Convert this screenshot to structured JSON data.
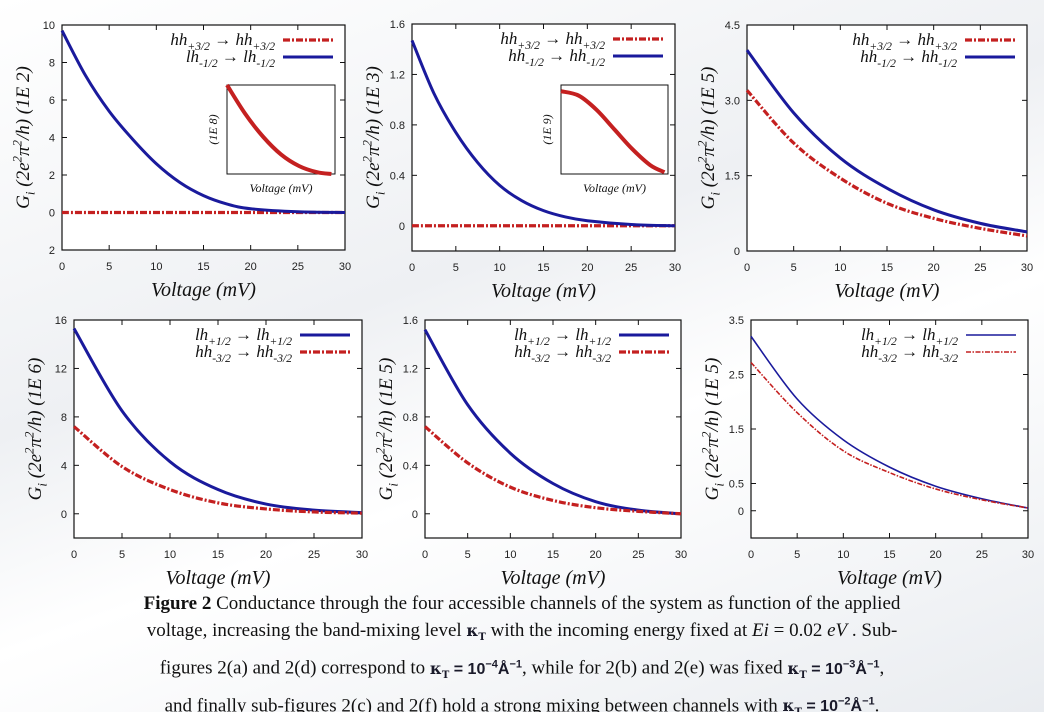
{
  "figure": {
    "colors": {
      "red": "#c42020",
      "blue": "#1a1a9c",
      "axis": "#111111"
    },
    "panels": [
      {
        "id": "a",
        "ylabel": "G_{i} (2e^{2}π^{2}/h) (1E  2)",
        "xlabel": "Voltage (mV)",
        "xlim": [
          0,
          30
        ],
        "ylim": [
          -2,
          10
        ],
        "xticks": [
          "0",
          "5",
          "10",
          "15",
          "20",
          "25",
          "30"
        ],
        "yticks": [
          {
            "v": 10,
            "t": "10"
          },
          {
            "v": 8,
            "t": "8"
          },
          {
            "v": 6,
            "t": "6"
          },
          {
            "v": 4,
            "t": "4"
          },
          {
            "v": 2,
            "t": "2"
          },
          {
            "v": 0,
            "t": "0"
          },
          {
            "v": -2,
            "t": "2"
          }
        ],
        "legend_placement": "top-right",
        "series": [
          {
            "name": "hh_{+3/2} → hh_{+3/2}",
            "color": "red",
            "style": "dashdot",
            "x": [
              0,
              5,
              10,
              15,
              20,
              25,
              30
            ],
            "y": [
              0,
              0,
              0,
              0,
              0,
              0,
              0
            ]
          },
          {
            "name": "lh_{-1/2} → lh_{-1/2}",
            "color": "blue",
            "style": "solid",
            "x": [
              0,
              2.5,
              5,
              7.5,
              10,
              12.5,
              15,
              17.5,
              20,
              25,
              30
            ],
            "y": [
              9.7,
              7.3,
              5.4,
              3.9,
              2.6,
              1.6,
              0.9,
              0.45,
              0.2,
              0.04,
              0
            ]
          }
        ],
        "inset": {
          "ylabel": "(1E  8)",
          "xlabel": "Voltage (mV)",
          "xlim": [
            0,
            30
          ],
          "ylim": [
            0,
            1
          ],
          "series": {
            "color": "red",
            "x": [
              0,
              5,
              10,
              15,
              20,
              25,
              29
            ],
            "y": [
              1,
              0.68,
              0.42,
              0.22,
              0.09,
              0.02,
              0.0
            ]
          }
        }
      },
      {
        "id": "b",
        "ylabel": "G_{i} (2e^{2}π^{2}/h) (1E  3)",
        "xlabel": "Voltage (mV)",
        "xlim": [
          0,
          30
        ],
        "ylim": [
          -0.2,
          1.6
        ],
        "xticks": [
          "0",
          "5",
          "10",
          "15",
          "20",
          "25",
          "30"
        ],
        "yticks": [
          {
            "v": 1.6,
            "t": "1.6"
          },
          {
            "v": 1.2,
            "t": "1.2"
          },
          {
            "v": 0.8,
            "t": "0.8"
          },
          {
            "v": 0.4,
            "t": "0.4"
          },
          {
            "v": 0,
            "t": "0"
          }
        ],
        "legend_placement": "top-right",
        "series": [
          {
            "name": "hh_{+3/2} → hh_{+3/2}",
            "color": "red",
            "style": "dashdot",
            "x": [
              0,
              5,
              10,
              15,
              20,
              25,
              30
            ],
            "y": [
              0,
              0,
              0,
              0,
              0,
              0,
              0
            ]
          },
          {
            "name": "hh_{-1/2} → hh_{-1/2}",
            "color": "blue",
            "style": "solid",
            "x": [
              0,
              2.5,
              5,
              7.5,
              10,
              12.5,
              15,
              17.5,
              20,
              25,
              30
            ],
            "y": [
              1.47,
              1.05,
              0.74,
              0.5,
              0.32,
              0.2,
              0.12,
              0.07,
              0.04,
              0.01,
              0
            ]
          }
        ],
        "inset": {
          "ylabel": "(1E  9)",
          "xlabel": "Voltage (mV)",
          "xlim": [
            0,
            30
          ],
          "ylim": [
            0,
            1
          ],
          "series": {
            "color": "red",
            "x": [
              0,
              5,
              10,
              15,
              20,
              25,
              29
            ],
            "y": [
              0.93,
              0.88,
              0.72,
              0.5,
              0.28,
              0.1,
              0.02
            ]
          }
        }
      },
      {
        "id": "c",
        "ylabel": "G_{i} (2e^{2}π^{2}/h) (1E  5)",
        "xlabel": "Voltage (mV)",
        "xlim": [
          0,
          30
        ],
        "ylim": [
          0,
          4.5
        ],
        "xticks": [
          "0",
          "5",
          "10",
          "15",
          "20",
          "25",
          "30"
        ],
        "yticks": [
          {
            "v": 4.5,
            "t": "4.5"
          },
          {
            "v": 3.0,
            "t": "3.0"
          },
          {
            "v": 1.5,
            "t": "1.5"
          },
          {
            "v": 0,
            "t": "0"
          }
        ],
        "legend_placement": "top-right",
        "series": [
          {
            "name": "hh_{+3/2} → hh_{+3/2}",
            "color": "red",
            "style": "dashdot",
            "x": [
              0,
              5,
              10,
              15,
              20,
              25,
              30
            ],
            "y": [
              3.2,
              2.15,
              1.45,
              0.95,
              0.65,
              0.45,
              0.3
            ]
          },
          {
            "name": "hh_{-1/2} → hh_{-1/2}",
            "color": "blue",
            "style": "solid",
            "x": [
              0,
              5,
              10,
              15,
              20,
              25,
              30
            ],
            "y": [
              4.0,
              2.75,
              1.85,
              1.25,
              0.82,
              0.55,
              0.38
            ]
          }
        ]
      },
      {
        "id": "d",
        "ylabel": "G_{i} (2e^{2}π^{2}/h) (1E  6)",
        "xlabel": "Voltage (mV)",
        "xlim": [
          0,
          30
        ],
        "ylim": [
          -2,
          16
        ],
        "xticks": [
          "0",
          "5",
          "10",
          "15",
          "20",
          "25",
          "30"
        ],
        "yticks": [
          {
            "v": 16,
            "t": "16"
          },
          {
            "v": 12,
            "t": "12"
          },
          {
            "v": 8,
            "t": "8"
          },
          {
            "v": 4,
            "t": "4"
          },
          {
            "v": 0,
            "t": "0"
          }
        ],
        "legend_placement": "top-right",
        "series": [
          {
            "name": "lh_{+1/2} → lh_{+1/2}",
            "color": "blue",
            "style": "solid",
            "x": [
              0,
              5,
              10,
              15,
              20,
              25,
              30
            ],
            "y": [
              15.3,
              8.5,
              4.3,
              2.0,
              0.8,
              0.3,
              0.1
            ]
          },
          {
            "name": "hh_{-3/2} → hh_{-3/2}",
            "color": "red",
            "style": "dashdot",
            "x": [
              0,
              5,
              10,
              15,
              20,
              25,
              30
            ],
            "y": [
              7.2,
              3.9,
              2.0,
              0.9,
              0.4,
              0.15,
              0.05
            ]
          }
        ]
      },
      {
        "id": "e",
        "ylabel": "G_{i} (2e^{2}π^{2}/h) (1E  5)",
        "xlabel": "Voltage (mV)",
        "xlim": [
          0,
          30
        ],
        "ylim": [
          -0.2,
          1.6
        ],
        "xticks": [
          "0",
          "5",
          "10",
          "15",
          "20",
          "25",
          "30"
        ],
        "yticks": [
          {
            "v": 1.6,
            "t": "1.6"
          },
          {
            "v": 1.2,
            "t": "1.2"
          },
          {
            "v": 0.8,
            "t": "0.8"
          },
          {
            "v": 0.4,
            "t": "0.4"
          },
          {
            "v": 0,
            "t": "0"
          }
        ],
        "legend_placement": "top-right",
        "series": [
          {
            "name": "lh_{+1/2} → lh_{+1/2}",
            "color": "blue",
            "style": "solid",
            "x": [
              0,
              5,
              10,
              15,
              20,
              25,
              30
            ],
            "y": [
              1.52,
              0.9,
              0.5,
              0.25,
              0.1,
              0.03,
              0.0
            ]
          },
          {
            "name": "hh_{-3/2} → hh_{-3/2}",
            "color": "red",
            "style": "dashdot",
            "x": [
              0,
              5,
              10,
              15,
              20,
              25,
              30
            ],
            "y": [
              0.72,
              0.42,
              0.22,
              0.11,
              0.05,
              0.02,
              0.0
            ]
          }
        ]
      },
      {
        "id": "f",
        "ylabel": "G_{i} (2e^{2}π^{2}/h) (1E  5)",
        "xlabel": "Voltage (mV)",
        "xlim": [
          0,
          30
        ],
        "ylim": [
          -0.5,
          3.5
        ],
        "xticks": [
          "0",
          "5",
          "10",
          "15",
          "20",
          "25",
          "30"
        ],
        "yticks": [
          {
            "v": 3.5,
            "t": "3.5"
          },
          {
            "v": 2.5,
            "t": "2.5"
          },
          {
            "v": 1.5,
            "t": "1.5"
          },
          {
            "v": 0.5,
            "t": "0.5"
          },
          {
            "v": 0,
            "t": "0"
          }
        ],
        "legend_placement": "top-right",
        "series": [
          {
            "name": "lh_{+1/2} → lh_{+1/2}",
            "color": "blue",
            "style": "thin",
            "x": [
              0,
              5,
              10,
              15,
              20,
              25,
              30
            ],
            "y": [
              3.2,
              2.05,
              1.3,
              0.8,
              0.45,
              0.22,
              0.05
            ]
          },
          {
            "name": "hh_{-3/2} → hh_{-3/2}",
            "color": "red",
            "style": "thin-dash",
            "x": [
              0,
              5,
              10,
              15,
              20,
              25,
              30
            ],
            "y": [
              2.72,
              1.8,
              1.1,
              0.7,
              0.4,
              0.2,
              0.05
            ]
          }
        ]
      }
    ]
  },
  "caption": {
    "lines": [
      [
        {
          "t": "Figure 2",
          "s": "bold"
        },
        {
          "t": " Conductance through the four accessible channels of the system as function of the applied",
          "s": ""
        }
      ],
      [
        {
          "t": "voltage, increasing the band-mixing level ",
          "s": ""
        },
        {
          "t": "κ",
          "s": "kappa",
          "sub": "T"
        },
        {
          "t": " with the incoming energy fixed at ",
          "s": ""
        },
        {
          "t": "Ei",
          "s": "ital"
        },
        {
          "t": " = 0.02 ",
          "s": ""
        },
        {
          "t": "eV",
          "s": "ital"
        },
        {
          "t": " . Sub-",
          "s": ""
        }
      ],
      [
        {
          "t": "figures 2(a) and 2(d) correspond to ",
          "s": ""
        },
        {
          "t": "κ",
          "s": "kappa",
          "sub": "T"
        },
        {
          "t": " = 10",
          "s": "eq",
          "sup": "−4"
        },
        {
          "t": "Å",
          "s": "eq",
          "sup": "−1"
        },
        {
          "t": ", while for 2(b) and 2(e) was fixed ",
          "s": ""
        },
        {
          "t": "κ",
          "s": "kappa",
          "sub": "T"
        },
        {
          "t": " = 10",
          "s": "eq",
          "sup": "−3"
        },
        {
          "t": "Å",
          "s": "eq",
          "sup": "−1"
        },
        {
          "t": ",",
          "s": ""
        }
      ],
      [
        {
          "t": "and finally sub-figures 2(c) and 2(f) hold a strong mixing between channels with ",
          "s": ""
        },
        {
          "t": "κ",
          "s": "kappa",
          "sub": "T"
        },
        {
          "t": " = 10",
          "s": "eq",
          "sup": "−2"
        },
        {
          "t": "Å",
          "s": "eq",
          "sup": "−1"
        },
        {
          "t": ".",
          "s": ""
        }
      ]
    ]
  }
}
